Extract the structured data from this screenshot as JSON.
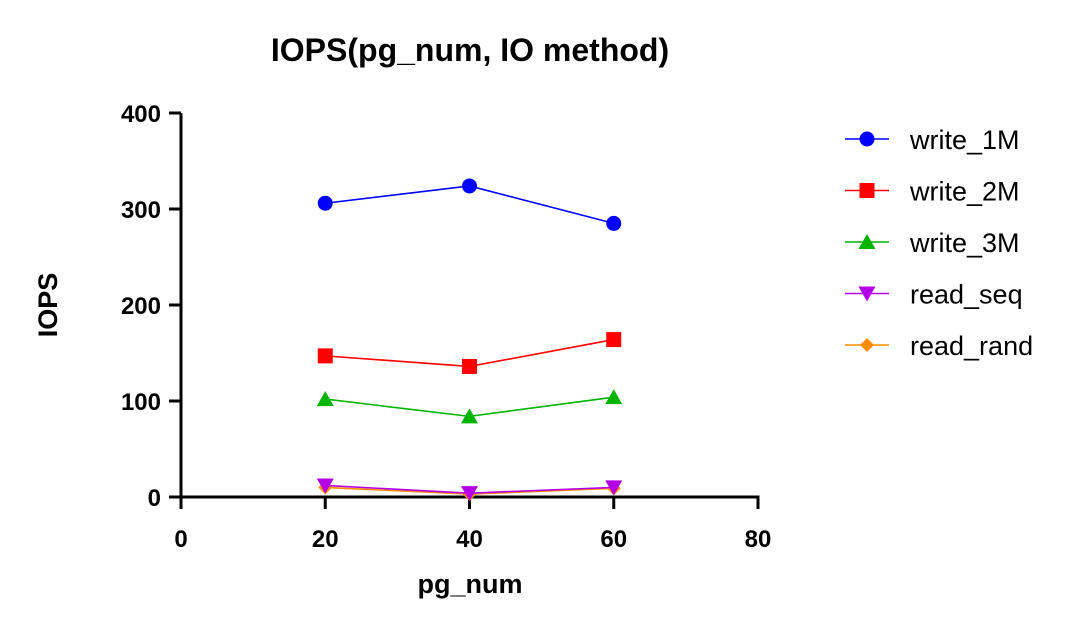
{
  "chart_data": {
    "type": "line",
    "title": "IOPS(pg_num, IO method)",
    "xlabel": "pg_num",
    "ylabel": "IOPS",
    "xlim": [
      0,
      80
    ],
    "ylim": [
      0,
      400
    ],
    "xticks": [
      0,
      20,
      40,
      60,
      80
    ],
    "yticks": [
      0,
      100,
      200,
      300,
      400
    ],
    "grid": false,
    "legend_position": "right",
    "x": [
      20,
      40,
      60
    ],
    "series": [
      {
        "name": "write_1M",
        "values": [
          306,
          324,
          285
        ],
        "color": "#0000ff",
        "marker": "circle"
      },
      {
        "name": "write_2M",
        "values": [
          147,
          136,
          164
        ],
        "color": "#ff0000",
        "marker": "square"
      },
      {
        "name": "write_3M",
        "values": [
          102,
          84,
          104
        ],
        "color": "#00b400",
        "marker": "triangle-up"
      },
      {
        "name": "read_seq",
        "values": [
          12,
          4,
          10
        ],
        "color": "#b400e6",
        "marker": "triangle-down"
      },
      {
        "name": "read_rand",
        "values": [
          10,
          3,
          9
        ],
        "color": "#ff8c00",
        "marker": "diamond"
      }
    ]
  }
}
